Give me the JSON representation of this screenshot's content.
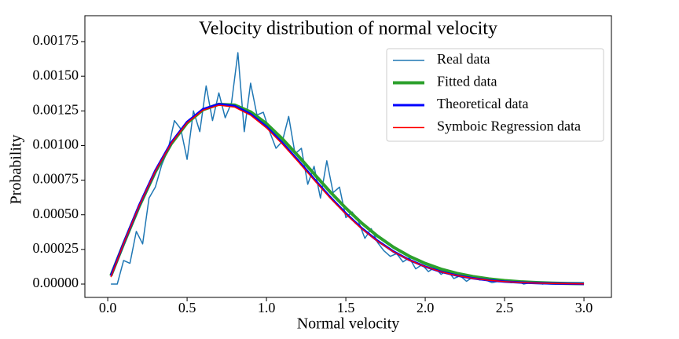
{
  "chart_data": {
    "type": "line",
    "title": "Velocity distribution of normal velocity",
    "xlabel": "Normal velocity",
    "ylabel": "Probability",
    "xlim": [
      -0.144,
      3.173
    ],
    "ylim": [
      -9.63e-05,
      0.001937
    ],
    "xticks": [
      {
        "value": 0,
        "label": "0.0"
      },
      {
        "value": 0.5,
        "label": "0.5"
      },
      {
        "value": 1,
        "label": "1.0"
      },
      {
        "value": 1.5,
        "label": "1.5"
      },
      {
        "value": 2,
        "label": "2.0"
      },
      {
        "value": 2.5,
        "label": "2.5"
      },
      {
        "value": 3,
        "label": "3.0"
      }
    ],
    "yticks": [
      {
        "value": 0,
        "label": "0.00000"
      },
      {
        "value": 0.00025,
        "label": "0.00025"
      },
      {
        "value": 0.0005,
        "label": "0.00050"
      },
      {
        "value": 0.00075,
        "label": "0.00075"
      },
      {
        "value": 0.001,
        "label": "0.00100"
      },
      {
        "value": 0.00125,
        "label": "0.00125"
      },
      {
        "value": 0.0015,
        "label": "0.00150"
      },
      {
        "value": 0.00175,
        "label": "0.00175"
      }
    ],
    "grid": false,
    "legend": "upper right",
    "series": [
      {
        "name": "Real data",
        "color": "#1f77b4",
        "width": 1.5,
        "x": [
          0.02,
          0.06,
          0.1,
          0.14,
          0.18,
          0.22,
          0.26,
          0.3,
          0.34,
          0.38,
          0.42,
          0.46,
          0.5,
          0.54,
          0.58,
          0.62,
          0.66,
          0.7,
          0.74,
          0.78,
          0.82,
          0.86,
          0.9,
          0.94,
          0.98,
          1.02,
          1.06,
          1.1,
          1.14,
          1.18,
          1.22,
          1.26,
          1.3,
          1.34,
          1.38,
          1.42,
          1.46,
          1.5,
          1.54,
          1.58,
          1.62,
          1.66,
          1.7,
          1.74,
          1.78,
          1.82,
          1.86,
          1.9,
          1.94,
          1.98,
          2.02,
          2.06,
          2.1,
          2.14,
          2.18,
          2.22,
          2.26,
          2.3,
          2.34,
          2.38,
          2.42,
          2.46,
          2.5,
          2.54,
          2.58,
          2.62,
          2.66,
          2.7,
          2.74,
          2.78,
          2.82,
          2.86,
          2.9,
          2.94,
          2.98
        ],
        "values": [
          0,
          0,
          0.00017,
          0.00015,
          0.00038,
          0.00029,
          0.00062,
          0.0007,
          0.00086,
          0.00097,
          0.00118,
          0.00112,
          0.0009,
          0.00125,
          0.0011,
          0.00143,
          0.00118,
          0.00138,
          0.0012,
          0.00131,
          0.00167,
          0.0011,
          0.00145,
          0.00122,
          0.00124,
          0.0011,
          0.00098,
          0.00103,
          0.00121,
          0.00094,
          0.00098,
          0.00072,
          0.00085,
          0.00062,
          0.00089,
          0.00066,
          0.0007,
          0.00048,
          0.00052,
          0.00045,
          0.00033,
          0.0004,
          0.0003,
          0.00024,
          0.0002,
          0.00022,
          0.00016,
          0.00019,
          0.00011,
          0.00014,
          9e-05,
          0.00012,
          7e-05,
          0.0001,
          4e-05,
          6e-05,
          2e-05,
          5e-05,
          3e-05,
          3e-05,
          1e-05,
          2e-05,
          3e-05,
          1e-05,
          2e-05,
          0,
          1e-05,
          1e-05,
          0,
          1e-05,
          0,
          1e-05,
          0,
          0,
          1e-05
        ]
      },
      {
        "name": "Fitted data",
        "color": "#2ca02c",
        "width": 4,
        "x": [
          0.02,
          0.1,
          0.2,
          0.3,
          0.4,
          0.5,
          0.6,
          0.7,
          0.8,
          0.9,
          1.0,
          1.1,
          1.2,
          1.3,
          1.4,
          1.5,
          1.6,
          1.7,
          1.8,
          1.9,
          2.0,
          2.1,
          2.2,
          2.3,
          2.4,
          2.5,
          2.6,
          2.7,
          2.8,
          2.9,
          3.0
        ],
        "values": [
          6e-05,
          0.00029,
          0.000565,
          0.00081,
          0.001012,
          0.001163,
          0.001258,
          0.001298,
          0.001292,
          0.001243,
          0.001158,
          0.001048,
          0.000925,
          0.000795,
          0.000667,
          0.000548,
          0.00044,
          0.000346,
          0.000266,
          0.000201,
          0.000149,
          0.000108,
          7.75e-05,
          5.45e-05,
          3.76e-05,
          2.55e-05,
          1.7e-05,
          1.11e-05,
          7.2e-06,
          4.6e-06,
          2.9e-06
        ]
      },
      {
        "name": "Theoretical data",
        "color": "#0000ff",
        "width": 3,
        "x": [
          0.02,
          0.1,
          0.2,
          0.3,
          0.4,
          0.5,
          0.6,
          0.7,
          0.8,
          0.9,
          1.0,
          1.1,
          1.2,
          1.3,
          1.4,
          1.5,
          1.6,
          1.7,
          1.8,
          1.9,
          2.0,
          2.1,
          2.2,
          2.3,
          2.4,
          2.5,
          2.6,
          2.7,
          2.8,
          2.9,
          3.0
        ],
        "values": [
          6e-05,
          0.000295,
          0.000573,
          0.000819,
          0.001021,
          0.00117,
          0.001262,
          0.001299,
          0.001285,
          0.001227,
          0.001135,
          0.001019,
          0.000891,
          0.000758,
          0.000629,
          0.00051,
          0.000403,
          0.000312,
          0.000235,
          0.000174,
          0.000126,
          8.88e-05,
          6.15e-05,
          4.16e-05,
          2.76e-05,
          1.79e-05,
          1.14e-05,
          7.1e-06,
          4.3e-06,
          2.6e-06,
          1.5e-06
        ]
      },
      {
        "name": "Symboic Regression data",
        "color": "#ff0000",
        "width": 1.5,
        "x": [
          0.02,
          0.1,
          0.2,
          0.3,
          0.4,
          0.5,
          0.6,
          0.7,
          0.8,
          0.9,
          1.0,
          1.1,
          1.2,
          1.3,
          1.4,
          1.5,
          1.6,
          1.7,
          1.8,
          1.9,
          2.0,
          2.1,
          2.2,
          2.3,
          2.4,
          2.5,
          2.6,
          2.7,
          2.8,
          2.9,
          3.0
        ],
        "values": [
          5e-05,
          0.000292,
          0.00057,
          0.000815,
          0.001016,
          0.001164,
          0.001255,
          0.001291,
          0.001277,
          0.001219,
          0.001127,
          0.001011,
          0.000883,
          0.000751,
          0.000623,
          0.000505,
          0.000399,
          0.000309,
          0.000233,
          0.000172,
          0.000125,
          8.8e-05,
          6.1e-05,
          4.12e-05,
          2.73e-05,
          1.77e-05,
          1.13e-05,
          7e-06,
          4.2e-06,
          2.5e-06,
          1.5e-06
        ]
      }
    ]
  }
}
